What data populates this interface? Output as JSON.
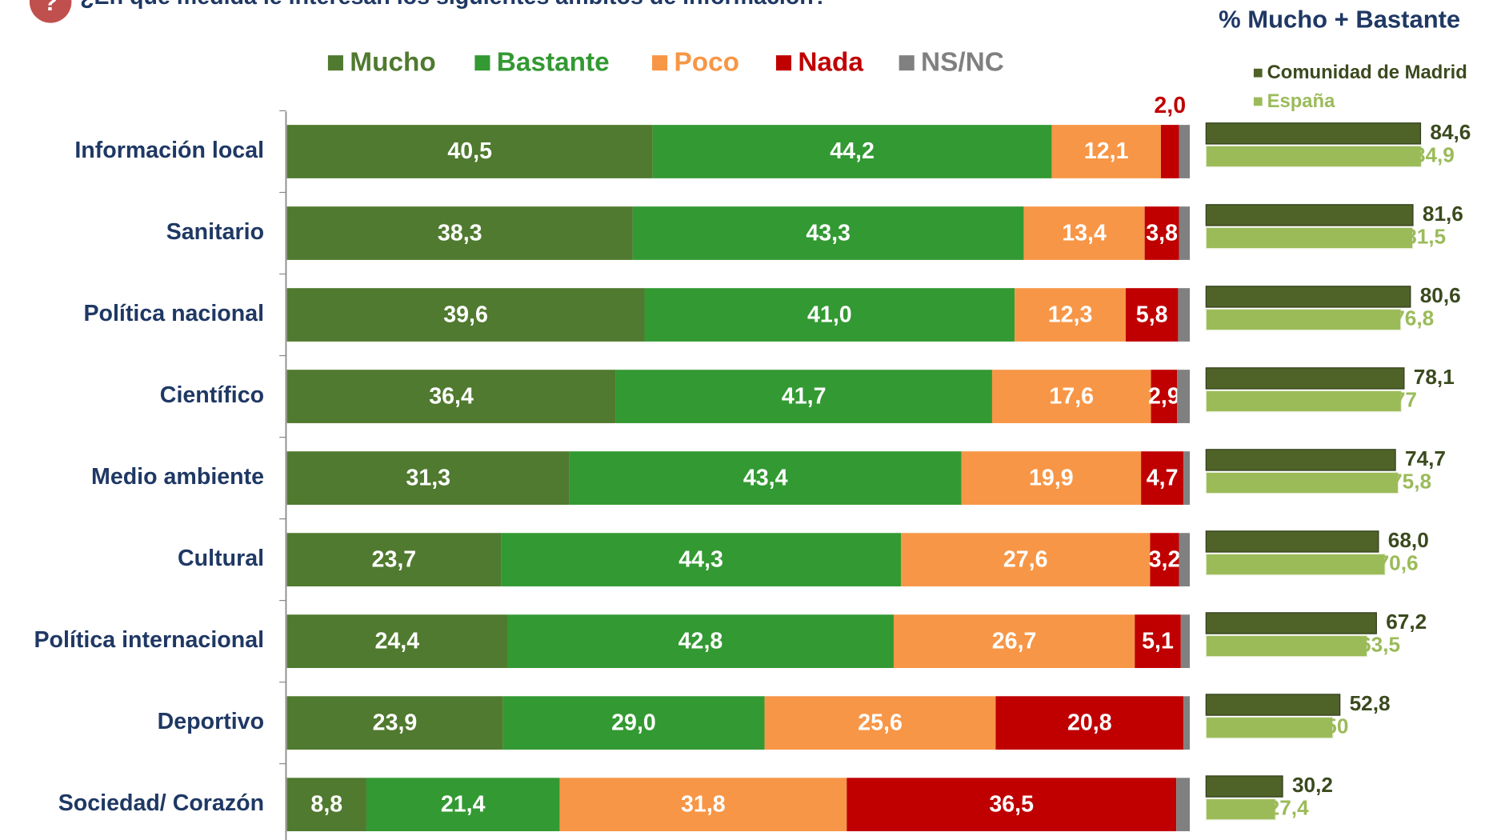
{
  "chart_data": [
    {
      "type": "stacked-bar-horizontal",
      "title": "¿En qué medida le interesan los siguientes ámbitos de información?",
      "categories": [
        "Información local",
        "Sanitario",
        "Política nacional",
        "Científico",
        "Medio ambiente",
        "Cultural",
        "Política internacional",
        "Deportivo",
        "Sociedad/ Corazón"
      ],
      "xlim": [
        0,
        100
      ],
      "legend": "top",
      "series": [
        {
          "name": "Mucho",
          "color": "#507a2f",
          "values": [
            40.5,
            38.3,
            39.6,
            36.4,
            31.3,
            23.7,
            24.4,
            23.9,
            8.8
          ],
          "value_labels": [
            "40,5",
            "38,3",
            "39,6",
            "36,4",
            "31,3",
            "23,7",
            "24,4",
            "23,9",
            "8,8"
          ]
        },
        {
          "name": "Bastante",
          "color": "#339933",
          "values": [
            44.2,
            43.3,
            41.0,
            41.7,
            43.4,
            44.3,
            42.8,
            29.0,
            21.4
          ],
          "value_labels": [
            "44,2",
            "43,3",
            "41,0",
            "41,7",
            "43,4",
            "44,3",
            "42,8",
            "29,0",
            "21,4"
          ]
        },
        {
          "name": "Poco",
          "color": "#f79646",
          "values": [
            12.1,
            13.4,
            12.3,
            17.6,
            19.9,
            27.6,
            26.7,
            25.6,
            31.8
          ],
          "value_labels": [
            "12,1",
            "13,4",
            "12,3",
            "17,6",
            "19,9",
            "27,6",
            "26,7",
            "25,6",
            "31,8"
          ]
        },
        {
          "name": "Nada",
          "color": "#c00000",
          "values": [
            2.0,
            3.8,
            5.8,
            2.9,
            4.7,
            3.2,
            5.1,
            20.8,
            36.5
          ],
          "value_labels": [
            "2,0",
            "3,8",
            "5,8",
            "2,9",
            "4,7",
            "3,2",
            "5,1",
            "20,8",
            "36,5"
          ]
        },
        {
          "name": "NS/NC",
          "color": "#808080",
          "values": [
            1.2,
            1.2,
            1.3,
            1.4,
            0.7,
            1.2,
            1.0,
            0.7,
            1.5
          ]
        }
      ]
    },
    {
      "type": "bar-horizontal",
      "title": "% Mucho + Bastante",
      "xlim": [
        0,
        100
      ],
      "series": [
        {
          "name": "Comunidad de Madrid",
          "color": "#4f6228",
          "values": [
            84.6,
            81.6,
            80.6,
            78.1,
            74.7,
            68.0,
            67.2,
            52.8,
            30.2
          ],
          "value_labels": [
            "84,6",
            "81,6",
            "80,6",
            "78,1",
            "74,7",
            "68,0",
            "67,2",
            "52,8",
            "30,2"
          ]
        },
        {
          "name": "España",
          "color": "#9bbb59",
          "values": [
            84.9,
            81.5,
            76.8,
            77,
            75.8,
            70.6,
            63.5,
            50,
            27.4
          ],
          "value_labels": [
            "84,9",
            "81,5",
            "76,8",
            "77",
            "75,8",
            "70,6",
            "63,5",
            "50",
            "27,4"
          ]
        }
      ]
    }
  ]
}
